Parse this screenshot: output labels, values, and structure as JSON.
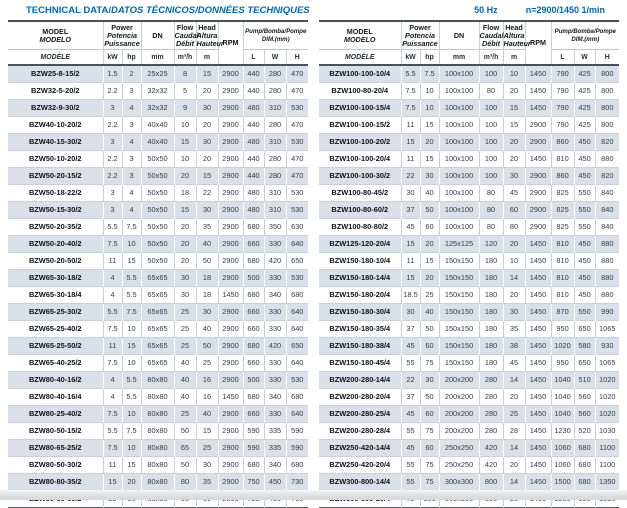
{
  "title": {
    "main": "TECHNICAL DATA/",
    "italic": "DATOS TÉCNICOS/DONNÉES TECHNIQUES"
  },
  "header_right": {
    "frequency": "50 Hz",
    "speed": "n=2900/1450 1/min"
  },
  "colors": {
    "accent_blue": "#0067b2",
    "row_shade": "#d9e0e9"
  },
  "table_header": {
    "model": [
      "MODEL",
      "MODELO",
      "MODÈLE"
    ],
    "power": {
      "labels": [
        "Power",
        "Potencia",
        "Puissance"
      ],
      "units": [
        "kW",
        "hp"
      ]
    },
    "dn": {
      "label": "DN",
      "unit": "mm"
    },
    "flow": {
      "labels": [
        "Flow",
        "Caudal",
        "Débit"
      ],
      "unit": "m³/h"
    },
    "head": {
      "labels": [
        "Head",
        "Altura",
        "Hauteur"
      ],
      "unit": "m"
    },
    "rpm": {
      "label": "RPM"
    },
    "dim": {
      "labels": [
        "Pump/Bomba/Pompe",
        "DIM.(mm)"
      ],
      "units": [
        "L",
        "W",
        "H"
      ]
    }
  },
  "tables": [
    {
      "rows": [
        [
          "BZW25-8-15/2",
          "1.5",
          "2",
          "25x25",
          "8",
          "15",
          "2900",
          "440",
          "280",
          "470"
        ],
        [
          "BZW32-5-20/2",
          "2.2",
          "3",
          "32x32",
          "5",
          "20",
          "2900",
          "440",
          "280",
          "470"
        ],
        [
          "BZW32-9-30/2",
          "3",
          "4",
          "32x32",
          "9",
          "30",
          "2900",
          "480",
          "310",
          "530"
        ],
        [
          "BZW40-10-20/2",
          "2.2",
          "3",
          "40x40",
          "10",
          "20",
          "2900",
          "440",
          "280",
          "470"
        ],
        [
          "BZW40-15-30/2",
          "3",
          "4",
          "40x40",
          "15",
          "30",
          "2900",
          "480",
          "310",
          "530"
        ],
        [
          "BZW50-10-20/2",
          "2.2",
          "3",
          "50x50",
          "10",
          "20",
          "2900",
          "440",
          "280",
          "470"
        ],
        [
          "BZW50-20-15/2",
          "2.2",
          "3",
          "50x50",
          "20",
          "15",
          "2900",
          "440",
          "280",
          "470"
        ],
        [
          "BZW50-18-22/2",
          "3",
          "4",
          "50x50",
          "18",
          "22",
          "2900",
          "480",
          "310",
          "530"
        ],
        [
          "BZW50-15-30/2",
          "3",
          "4",
          "50x50",
          "15",
          "30",
          "2900",
          "480",
          "310",
          "530"
        ],
        [
          "BZW50-20-35/2",
          "5.5",
          "7.5",
          "50x50",
          "20",
          "35",
          "2900",
          "680",
          "350",
          "630"
        ],
        [
          "BZW50-20-40/2",
          "7.5",
          "10",
          "50x50",
          "20",
          "40",
          "2900",
          "660",
          "330",
          "640"
        ],
        [
          "BZW50-20-50/2",
          "11",
          "15",
          "50x50",
          "20",
          "50",
          "2900",
          "680",
          "420",
          "650"
        ],
        [
          "BZW65-30-18/2",
          "4",
          "5.5",
          "65x65",
          "30",
          "18",
          "2900",
          "500",
          "330",
          "530"
        ],
        [
          "BZW65-30-18/4",
          "4",
          "5.5",
          "65x65",
          "30",
          "18",
          "1450",
          "680",
          "340",
          "680"
        ],
        [
          "BZW65-25-30/2",
          "5.5",
          "7.5",
          "65x65",
          "25",
          "30",
          "2900",
          "660",
          "330",
          "640"
        ],
        [
          "BZW65-25-40/2",
          "7.5",
          "10",
          "65x65",
          "25",
          "40",
          "2900",
          "660",
          "330",
          "640"
        ],
        [
          "BZW65-25-50/2",
          "11",
          "15",
          "65x65",
          "25",
          "50",
          "2900",
          "680",
          "420",
          "650"
        ],
        [
          "BZW65-40-25/2",
          "7.5",
          "10",
          "65x65",
          "40",
          "25",
          "2900",
          "660",
          "330",
          "640"
        ],
        [
          "BZW80-40-16/2",
          "4",
          "5.5",
          "80x80",
          "40",
          "16",
          "2900",
          "500",
          "330",
          "530"
        ],
        [
          "BZW80-40-16/4",
          "4",
          "5.5",
          "80x80",
          "40",
          "16",
          "1450",
          "680",
          "340",
          "680"
        ],
        [
          "BZW80-25-40/2",
          "7.5",
          "10",
          "80x80",
          "25",
          "40",
          "2900",
          "660",
          "330",
          "640"
        ],
        [
          "BZW80-50-15/2",
          "5.5",
          "7.5",
          "80x80",
          "50",
          "15",
          "2900",
          "590",
          "335",
          "590"
        ],
        [
          "BZW80-65-25/2",
          "7.5",
          "10",
          "80x80",
          "65",
          "25",
          "2900",
          "590",
          "335",
          "590"
        ],
        [
          "BZW80-50-30/2",
          "11",
          "15",
          "80x80",
          "50",
          "30",
          "2900",
          "680",
          "340",
          "680"
        ],
        [
          "BZW80-80-35/2",
          "15",
          "20",
          "80x80",
          "80",
          "35",
          "2900",
          "750",
          "450",
          "730"
        ],
        [
          "BZW80-50-60/2",
          "22",
          "30",
          "80x80",
          "50",
          "60",
          "2900",
          "720",
          "430",
          "700"
        ]
      ]
    },
    {
      "rows": [
        [
          "BZW100-100-10/4",
          "5.5",
          "7.5",
          "100x100",
          "100",
          "10",
          "1450",
          "790",
          "425",
          "800"
        ],
        [
          "BZW100-80-20/4",
          "7.5",
          "10",
          "100x100",
          "80",
          "20",
          "1450",
          "790",
          "425",
          "800"
        ],
        [
          "BZW100-100-15/4",
          "7.5",
          "10",
          "100x100",
          "100",
          "15",
          "1450",
          "790",
          "425",
          "800"
        ],
        [
          "BZW100-100-15/2",
          "11",
          "15",
          "100x100",
          "100",
          "15",
          "2900",
          "790",
          "425",
          "800"
        ],
        [
          "BZW100-100-20/2",
          "15",
          "20",
          "100x100",
          "100",
          "20",
          "2900",
          "860",
          "450",
          "820"
        ],
        [
          "BZW100-100-20/4",
          "11",
          "15",
          "100x100",
          "100",
          "20",
          "1450",
          "810",
          "450",
          "880"
        ],
        [
          "BZW100-100-30/2",
          "22",
          "30",
          "100x100",
          "100",
          "30",
          "2900",
          "860",
          "450",
          "820"
        ],
        [
          "BZW100-80-45/2",
          "30",
          "40",
          "100x100",
          "80",
          "45",
          "2900",
          "825",
          "550",
          "840"
        ],
        [
          "BZW100-80-60/2",
          "37",
          "50",
          "100x100",
          "80",
          "60",
          "2900",
          "825",
          "550",
          "840"
        ],
        [
          "BZW100-80-80/2",
          "45",
          "60",
          "100x100",
          "80",
          "80",
          "2900",
          "825",
          "550",
          "840"
        ],
        [
          "BZW125-120-20/4",
          "15",
          "20",
          "125x125",
          "120",
          "20",
          "1450",
          "810",
          "450",
          "880"
        ],
        [
          "BZW150-180-10/4",
          "11",
          "15",
          "150x150",
          "180",
          "10",
          "1450",
          "810",
          "450",
          "880"
        ],
        [
          "BZW150-180-14/4",
          "15",
          "20",
          "150x150",
          "180",
          "14",
          "1450",
          "810",
          "450",
          "880"
        ],
        [
          "BZW150-180-20/4",
          "18.5",
          "25",
          "150x150",
          "180",
          "20",
          "1450",
          "810",
          "450",
          "880"
        ],
        [
          "BZW150-180-30/4",
          "30",
          "40",
          "150x150",
          "180",
          "30",
          "1450",
          "870",
          "550",
          "990"
        ],
        [
          "BZW150-180-35/4",
          "37",
          "50",
          "150x150",
          "180",
          "35",
          "1450",
          "950",
          "650",
          "1065"
        ],
        [
          "BZW150-180-38/4",
          "45",
          "60",
          "150x150",
          "180",
          "38",
          "1450",
          "1020",
          "580",
          "930"
        ],
        [
          "BZW150-180-45/4",
          "55",
          "75",
          "150x150",
          "180",
          "45",
          "1450",
          "950",
          "650",
          "1065"
        ],
        [
          "BZW200-280-14/4",
          "22",
          "30",
          "200x200",
          "280",
          "14",
          "1450",
          "1040",
          "510",
          "1020"
        ],
        [
          "BZW200-280-20/4",
          "37",
          "50",
          "200x200",
          "280",
          "20",
          "1450",
          "1040",
          "560",
          "1020"
        ],
        [
          "BZW200-280-25/4",
          "45",
          "60",
          "200x200",
          "280",
          "25",
          "1450",
          "1040",
          "560",
          "1020"
        ],
        [
          "BZW200-280-28/4",
          "55",
          "75",
          "200x200",
          "280",
          "28",
          "1450",
          "1230",
          "520",
          "1030"
        ],
        [
          "BZW250-420-14/4",
          "45",
          "60",
          "250x250",
          "420",
          "14",
          "1450",
          "1060",
          "680",
          "1100"
        ],
        [
          "BZW250-420-20/4",
          "55",
          "75",
          "250x250",
          "420",
          "20",
          "1450",
          "1060",
          "680",
          "1100"
        ],
        [
          "BZW300-800-14/4",
          "55",
          "75",
          "300x300",
          "800",
          "14",
          "1450",
          "1500",
          "680",
          "1350"
        ],
        [
          "BZW300-800-20/4",
          "75",
          "100",
          "300x300",
          "800",
          "20",
          "1450",
          "1500",
          "680",
          "1350"
        ]
      ]
    }
  ]
}
